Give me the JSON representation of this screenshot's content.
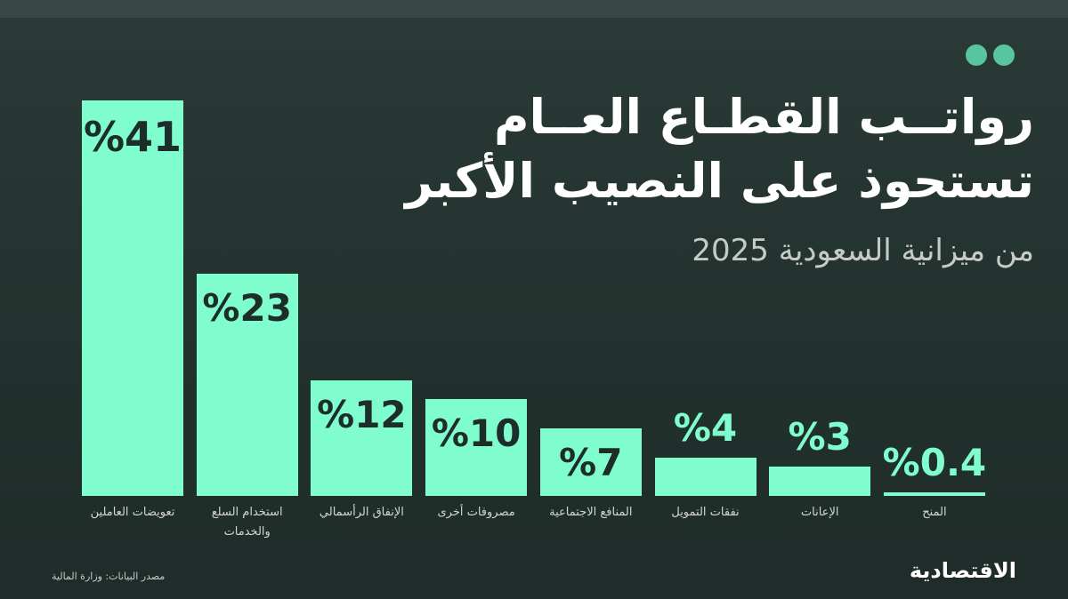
{
  "chart_data": {
    "type": "bar",
    "title": [
      "رواتــب القطـاع العــام",
      "تستحوذ على النصيب الأكبر"
    ],
    "subtitle": "من ميزانية السعودية 2025",
    "categories": [
      "تعويضات العاملين",
      "استخدام السلع والخدمات",
      "الإنفاق الرأسمالي",
      "مصروفات أخرى",
      "المنافع الاجتماعية",
      "نفقات التمويل",
      "الإعانات",
      "المنح"
    ],
    "values": [
      41,
      23,
      12,
      10,
      7,
      4,
      3,
      0.4
    ],
    "value_labels": [
      "%41",
      "%23",
      "%12",
      "%10",
      "%7",
      "%4",
      "%3",
      "%0.4"
    ],
    "color": "#80fdce",
    "source": "مصدر البيانات: وزارة المالية",
    "brand": "الاقتصادية"
  }
}
